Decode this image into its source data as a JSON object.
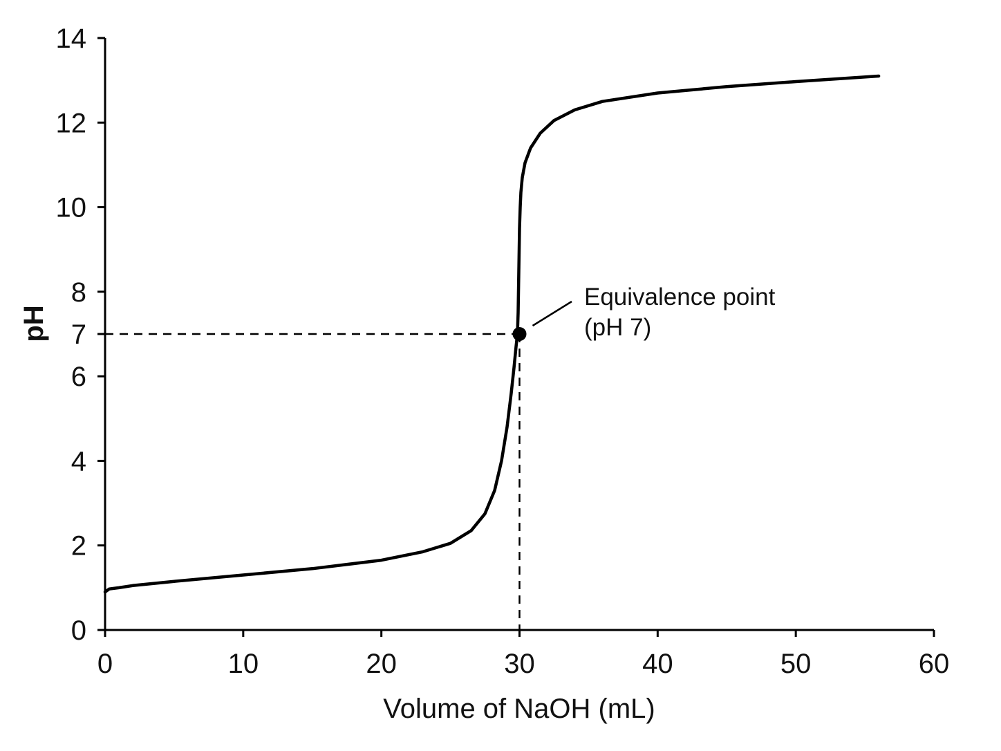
{
  "chart_data": {
    "type": "line",
    "title": "",
    "xlabel": "Volume of NaOH (mL)",
    "ylabel": "pH",
    "xlim": [
      0,
      60
    ],
    "ylim": [
      0,
      14
    ],
    "xticks": [
      0,
      10,
      20,
      30,
      40,
      50,
      60
    ],
    "yticks": [
      0,
      2,
      4,
      6,
      7,
      8,
      10,
      12,
      14
    ],
    "grid": false,
    "legend": "none",
    "series": [
      {
        "x": [
          0,
          0.3,
          1,
          2,
          5,
          10,
          15,
          20,
          23,
          25,
          26.5,
          27.5,
          28.2,
          28.7,
          29.1,
          29.4,
          29.6,
          29.75,
          29.85,
          29.9,
          29.95,
          30,
          30.05,
          30.1,
          30.2,
          30.4,
          30.8,
          31.5,
          32.5,
          34,
          36,
          40,
          45,
          50,
          56
        ],
        "y": [
          0.9,
          0.97,
          1.0,
          1.05,
          1.15,
          1.3,
          1.45,
          1.65,
          1.85,
          2.05,
          2.35,
          2.75,
          3.3,
          4.0,
          4.8,
          5.6,
          6.2,
          6.7,
          7.0,
          7.5,
          8.5,
          9.5,
          10.0,
          10.35,
          10.7,
          11.05,
          11.4,
          11.75,
          12.05,
          12.3,
          12.5,
          12.7,
          12.85,
          12.97,
          13.1
        ]
      }
    ],
    "equivalence_point": {
      "x": 30,
      "y": 7
    },
    "annotation": [
      "Equivalence point",
      "(pH 7)"
    ],
    "colors": {
      "line": "#000000",
      "text": "#111111"
    }
  }
}
